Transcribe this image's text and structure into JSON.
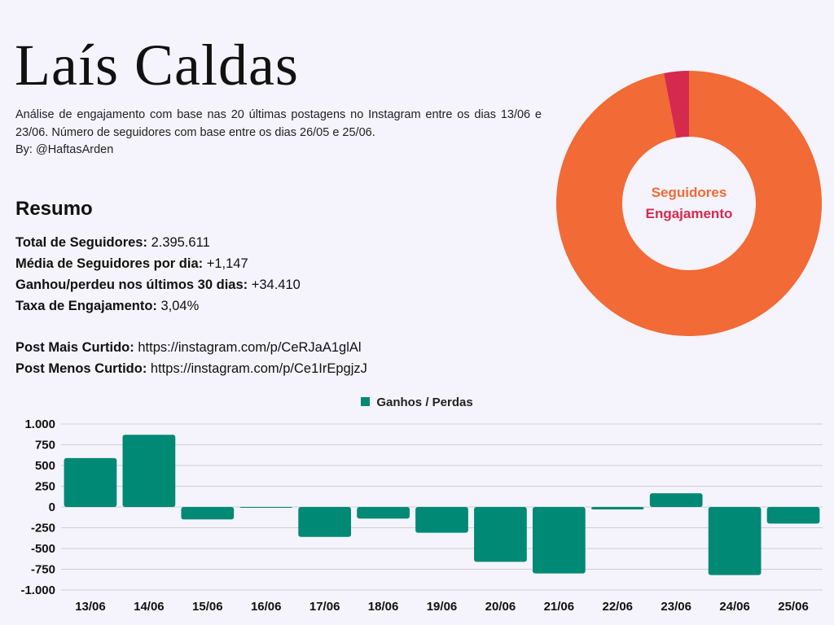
{
  "header": {
    "name": "Laís Caldas",
    "description": "Análise de engajamento com base nas 20 últimas postagens no Instagram entre os dias 13/06 e 23/06. Número de seguidores com base entre os dias 26/05 e 25/06.",
    "byline": "By: @HaftasArden"
  },
  "resumo": {
    "heading": "Resumo",
    "stats": [
      {
        "label": "Total de Seguidores:",
        "value": "2.395.611"
      },
      {
        "label": "Média de Seguidores por dia:",
        "value": "+1,147"
      },
      {
        "label": "Ganhou/perdeu nos últimos 30 dias:",
        "value": "+34.410"
      },
      {
        "label": "Taxa de Engajamento:",
        "value": "3,04%"
      }
    ],
    "links": [
      {
        "label": "Post Mais Curtido:",
        "value": "https://instagram.com/p/CeRJaA1glAl"
      },
      {
        "label": "Post Menos Curtido:",
        "value": "https://instagram.com/p/Ce1IrEpgjzJ"
      }
    ]
  },
  "colors": {
    "seguidores": "#f26a35",
    "engajamento": "#d6294e",
    "bars": "#008975",
    "background": "#f5f3fb"
  },
  "chart_data": [
    {
      "type": "pie",
      "style": "donut",
      "categories": [
        "Seguidores",
        "Engajamento"
      ],
      "values": [
        96.96,
        3.04
      ],
      "legend": "center"
    },
    {
      "type": "bar",
      "series": [
        {
          "name": "Ganhos / Perdas",
          "values": [
            590,
            870,
            -150,
            -10,
            -360,
            -140,
            -310,
            -660,
            -800,
            -30,
            165,
            -820,
            -200
          ]
        }
      ],
      "categories": [
        "13/06",
        "14/06",
        "15/06",
        "16/06",
        "17/06",
        "18/06",
        "19/06",
        "20/06",
        "21/06",
        "22/06",
        "23/06",
        "24/06",
        "25/06"
      ],
      "yticks": [
        "1.000",
        "750",
        "500",
        "250",
        "0",
        "-250",
        "-500",
        "-750",
        "-1.000"
      ],
      "ylim": [
        -1000,
        1000
      ],
      "grid": true,
      "legend": "top-center"
    }
  ]
}
